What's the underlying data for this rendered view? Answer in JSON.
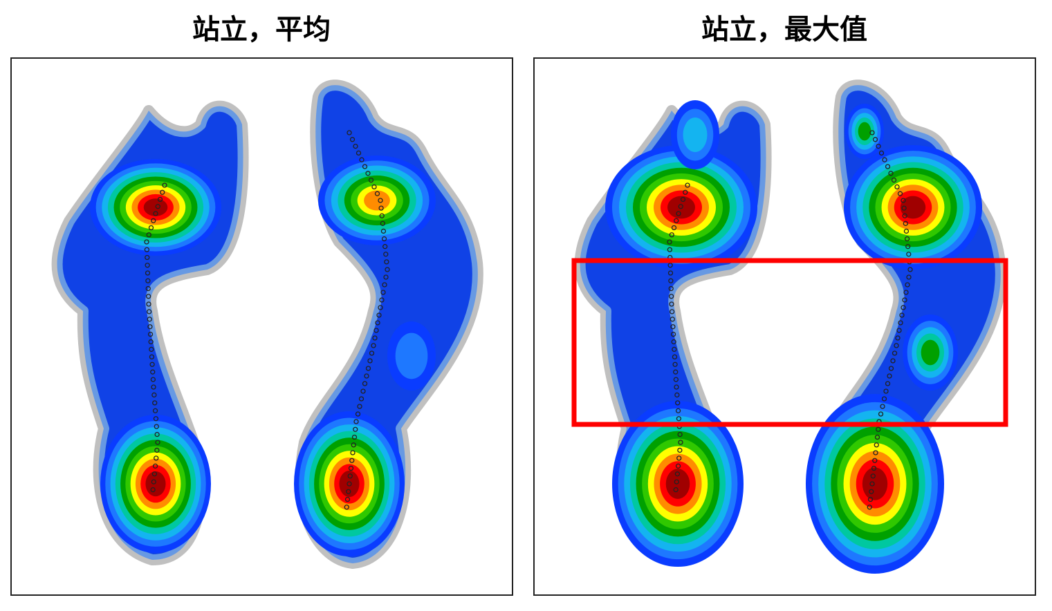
{
  "panels": [
    {
      "title": "站立，平均"
    },
    {
      "title": "站立，最大值"
    }
  ]
}
